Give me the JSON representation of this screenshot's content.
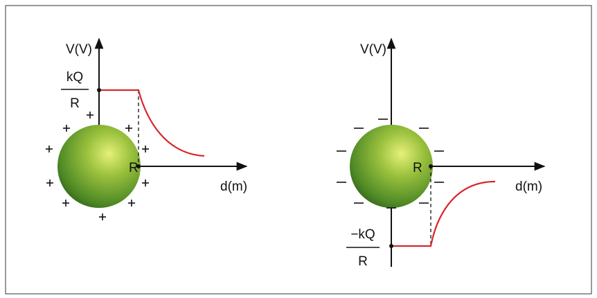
{
  "diagrams": [
    {
      "y_axis_label": "V(V)",
      "x_axis_label": "d(m)",
      "potential_numerator": "kQ",
      "potential_denominator": "R",
      "radius_label": "R"
    },
    {
      "y_axis_label": "V(V)",
      "x_axis_label": "d(m)",
      "potential_numerator": "−kQ",
      "potential_denominator": "R",
      "radius_label": "R"
    }
  ]
}
